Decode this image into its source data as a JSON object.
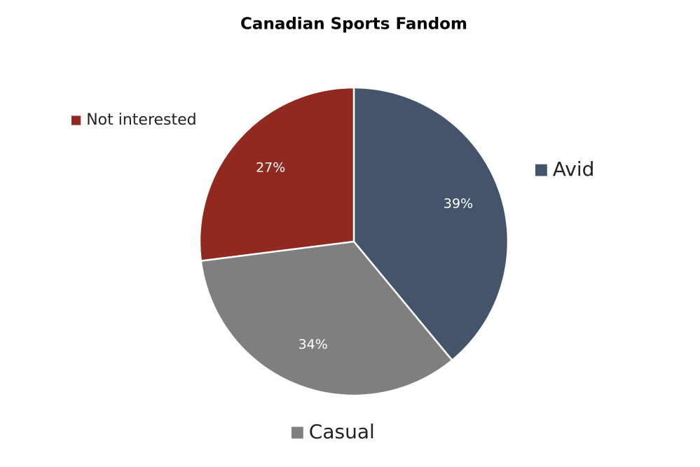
{
  "chart_data": {
    "type": "pie",
    "title": "Canadian Sports Fandom",
    "categories": [
      "Avid",
      "Casual",
      "Not interested"
    ],
    "values": [
      39,
      34,
      27
    ],
    "value_labels": [
      "39%",
      "34%",
      "27%"
    ],
    "colors": [
      "#44546a",
      "#7f7f7f",
      "#922920"
    ]
  }
}
